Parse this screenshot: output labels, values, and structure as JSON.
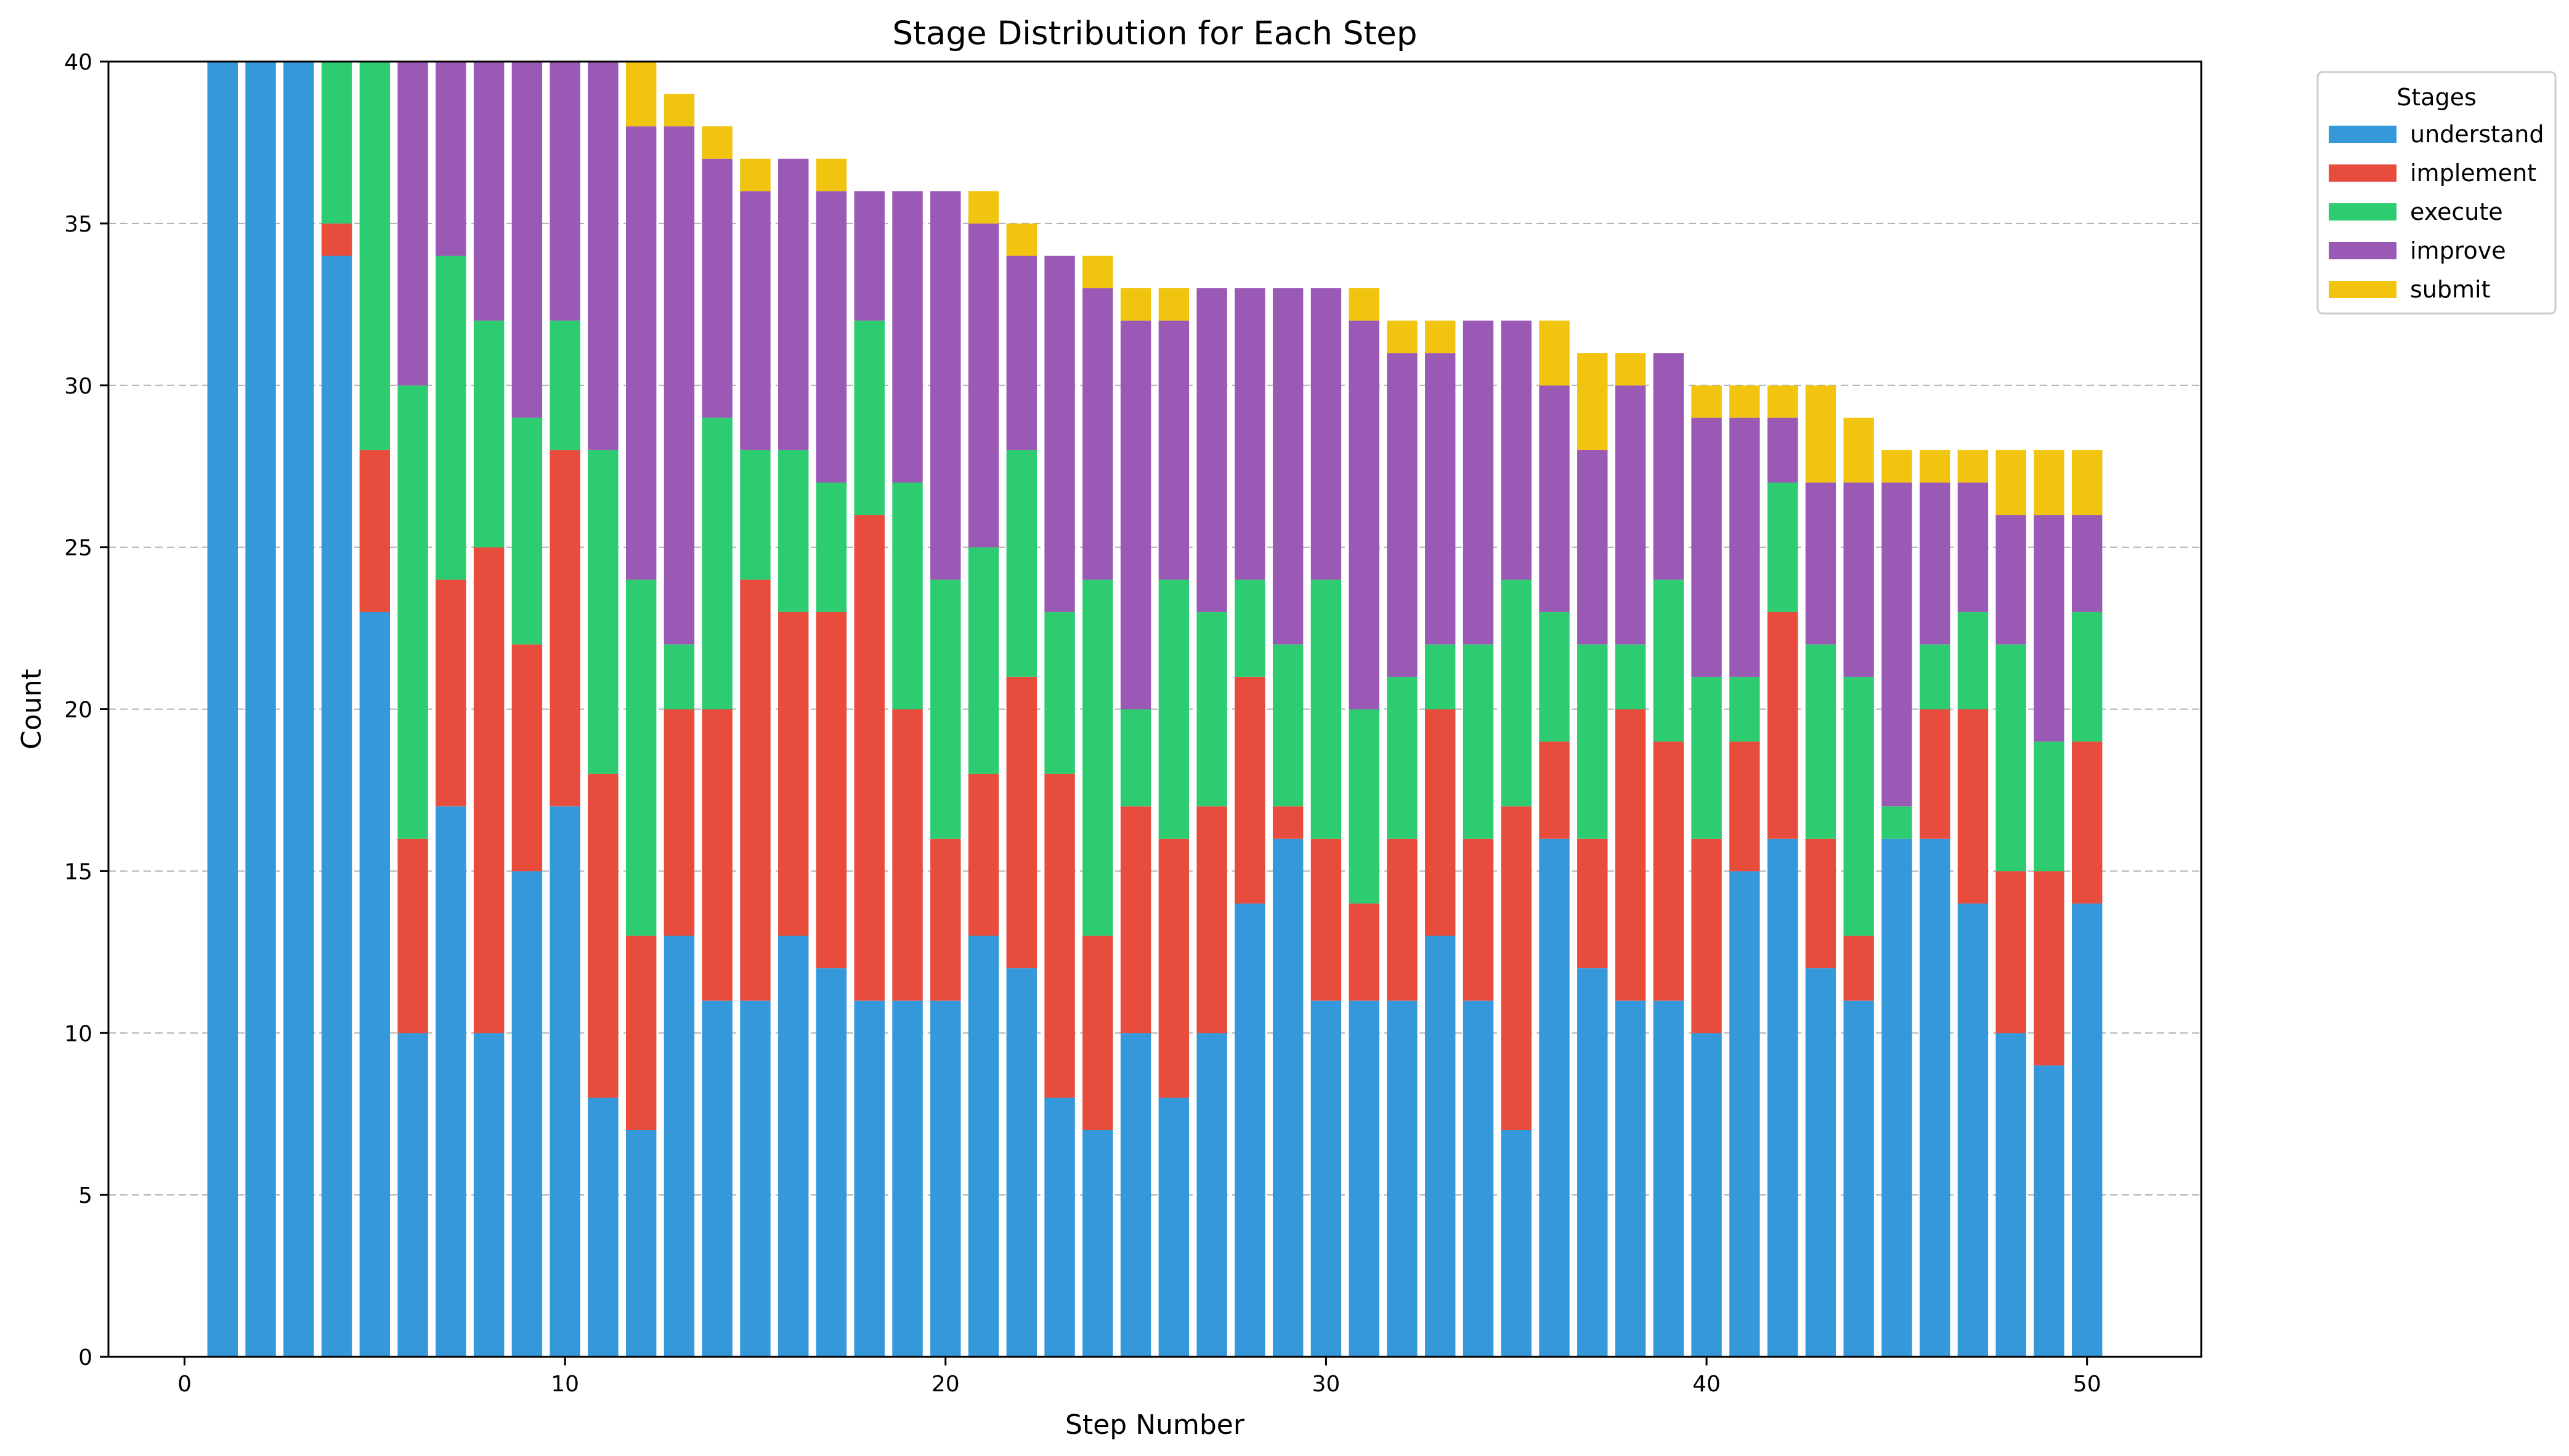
{
  "chart_data": {
    "type": "bar",
    "stacked": true,
    "title": "Stage Distribution for Each Step",
    "xlabel": "Step Number",
    "ylabel": "Count",
    "xlim": [
      -2,
      53
    ],
    "ylim": [
      0,
      40
    ],
    "xticks": [
      0,
      10,
      20,
      30,
      40,
      50
    ],
    "yticks": [
      0,
      5,
      10,
      15,
      20,
      25,
      30,
      35,
      40
    ],
    "grid": "y-dashed",
    "legend": {
      "title": "Stages",
      "placement": "outside-top-right"
    },
    "x": [
      1,
      2,
      3,
      4,
      5,
      6,
      7,
      8,
      9,
      10,
      11,
      12,
      13,
      14,
      15,
      16,
      17,
      18,
      19,
      20,
      21,
      22,
      23,
      24,
      25,
      26,
      27,
      28,
      29,
      30,
      31,
      32,
      33,
      34,
      35,
      36,
      37,
      38,
      39,
      40,
      41,
      42,
      43,
      44,
      45,
      46,
      47,
      48,
      49,
      50
    ],
    "series": [
      {
        "name": "understand",
        "color": "#3498db",
        "values": [
          40,
          40,
          40,
          34,
          23,
          10,
          17,
          10,
          15,
          17,
          8,
          7,
          13,
          11,
          11,
          13,
          12,
          11,
          11,
          11,
          13,
          12,
          8,
          7,
          10,
          8,
          10,
          14,
          16,
          11,
          11,
          11,
          13,
          11,
          7,
          16,
          12,
          11,
          11,
          10,
          15,
          16,
          12,
          11,
          16,
          16,
          14,
          10,
          9,
          14
        ]
      },
      {
        "name": "implement",
        "color": "#e74c3c",
        "values": [
          0,
          0,
          0,
          1,
          5,
          6,
          7,
          15,
          7,
          11,
          10,
          6,
          7,
          9,
          13,
          10,
          11,
          15,
          9,
          5,
          5,
          9,
          10,
          6,
          7,
          8,
          7,
          7,
          1,
          5,
          3,
          5,
          7,
          5,
          10,
          3,
          4,
          9,
          8,
          6,
          4,
          7,
          4,
          2,
          0,
          4,
          6,
          5,
          6,
          5
        ]
      },
      {
        "name": "execute",
        "color": "#2ecc71",
        "values": [
          0,
          0,
          0,
          5,
          12,
          14,
          10,
          7,
          7,
          4,
          10,
          11,
          2,
          9,
          4,
          5,
          4,
          6,
          7,
          8,
          7,
          7,
          5,
          11,
          3,
          8,
          6,
          3,
          5,
          8,
          6,
          5,
          2,
          6,
          7,
          4,
          6,
          2,
          5,
          5,
          2,
          4,
          6,
          8,
          1,
          2,
          3,
          7,
          4,
          4
        ]
      },
      {
        "name": "improve",
        "color": "#9b59b6",
        "values": [
          0,
          0,
          0,
          0,
          0,
          10,
          6,
          8,
          11,
          8,
          12,
          14,
          16,
          8,
          8,
          9,
          9,
          4,
          9,
          12,
          10,
          6,
          11,
          9,
          12,
          8,
          10,
          9,
          11,
          9,
          12,
          10,
          9,
          10,
          8,
          7,
          6,
          8,
          7,
          8,
          8,
          2,
          5,
          6,
          10,
          5,
          4,
          4,
          7,
          3
        ]
      },
      {
        "name": "submit",
        "color": "#f1c40f",
        "values": [
          0,
          0,
          0,
          0,
          0,
          0,
          0,
          0,
          0,
          0,
          0,
          2,
          1,
          1,
          1,
          0,
          1,
          0,
          0,
          0,
          1,
          1,
          0,
          1,
          1,
          1,
          0,
          0,
          0,
          0,
          1,
          1,
          1,
          0,
          0,
          2,
          3,
          1,
          0,
          1,
          1,
          1,
          3,
          2,
          1,
          1,
          1,
          2,
          2,
          2
        ]
      }
    ]
  }
}
